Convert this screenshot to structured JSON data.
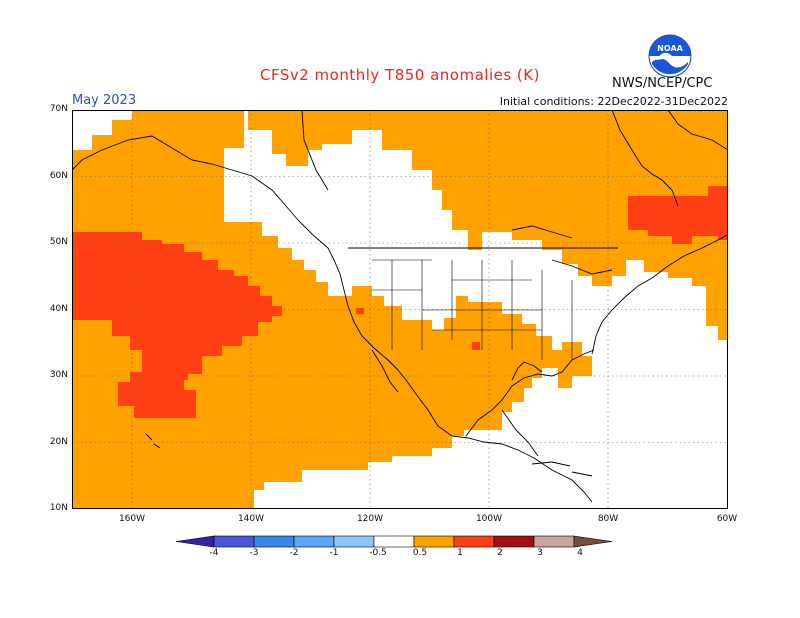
{
  "header": {
    "title": "CFSv2 monthly T850 anomalies (K)",
    "agency": "NWS/NCEP/CPC",
    "month": "May 2023",
    "initial_conditions": "Initial conditions: 22Dec2022-31Dec2022",
    "logo_text": "NOAA"
  },
  "map": {
    "lat_labels": [
      "70N",
      "60N",
      "50N",
      "40N",
      "30N",
      "20N",
      "10N"
    ],
    "lon_labels": [
      "160W",
      "140W",
      "120W",
      "100W",
      "80W",
      "60W"
    ],
    "colors": {
      "weak_positive": "#ffa200",
      "strong_positive": "#ff3f14",
      "land_outline": "#000000",
      "neutral": "#ffffff"
    }
  },
  "colorbar": {
    "labels": [
      "-4",
      "-3",
      "-2",
      "-1",
      "-0.5",
      "0.5",
      "1",
      "2",
      "3",
      "4"
    ],
    "colors": [
      "#3b1fa6",
      "#4a56d8",
      "#3a86ea",
      "#5aa6f5",
      "#8ec3fa",
      "#ffffff",
      "#ffa200",
      "#ff3f14",
      "#a50f0f",
      "#c9a49a",
      "#7a4a3a"
    ]
  }
}
